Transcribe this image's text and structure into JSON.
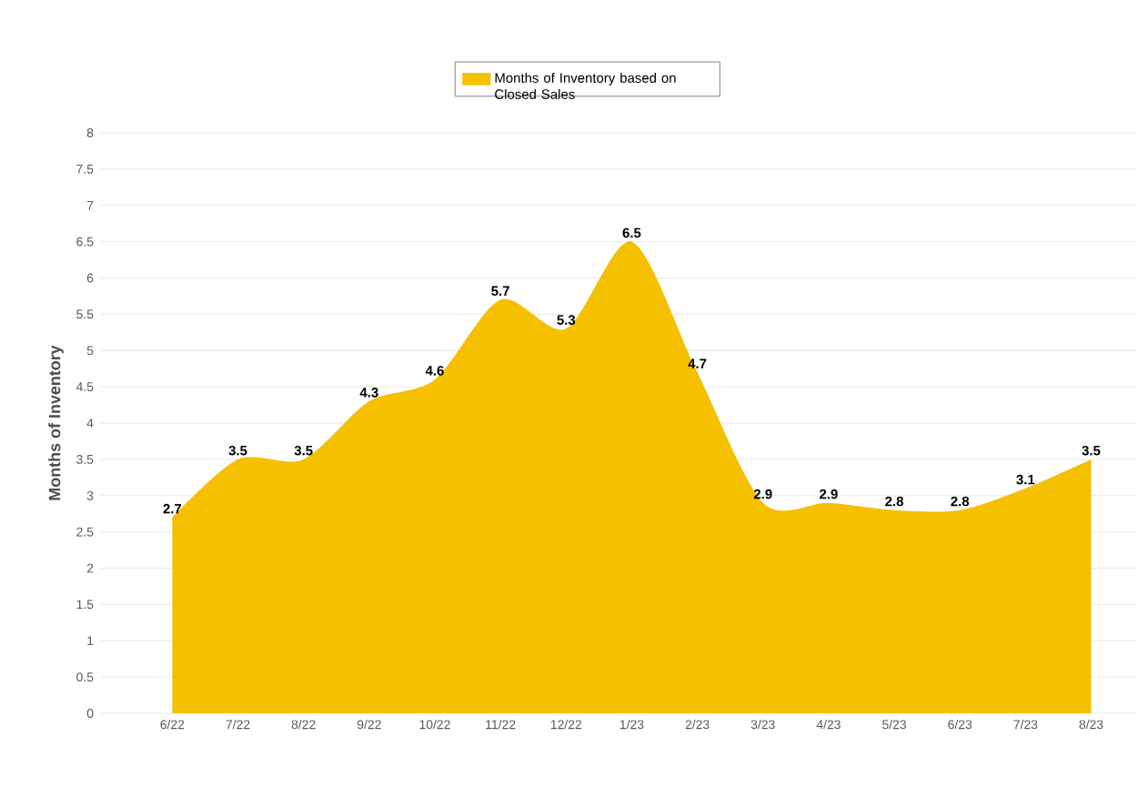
{
  "chart_data": {
    "type": "area",
    "ylabel": "Months of Inventory",
    "categories": [
      "6/22",
      "7/22",
      "8/22",
      "9/22",
      "10/22",
      "11/22",
      "12/22",
      "1/23",
      "2/23",
      "3/23",
      "4/23",
      "5/23",
      "6/23",
      "7/23",
      "8/23"
    ],
    "series": [
      {
        "name": "Months of Inventory based on Closed Sales",
        "color": "#f5c000",
        "values": [
          2.7,
          3.5,
          3.5,
          4.3,
          4.6,
          5.7,
          5.3,
          6.5,
          4.7,
          2.9,
          2.9,
          2.8,
          2.8,
          3.1,
          3.5
        ]
      }
    ],
    "ylim": [
      0,
      8
    ],
    "yticks": [
      0,
      0.5,
      1,
      1.5,
      2,
      2.5,
      3,
      3.5,
      4,
      4.5,
      5,
      5.5,
      6,
      6.5,
      7,
      7.5,
      8
    ],
    "grid": "y",
    "legend": "top",
    "data_labels": true
  }
}
